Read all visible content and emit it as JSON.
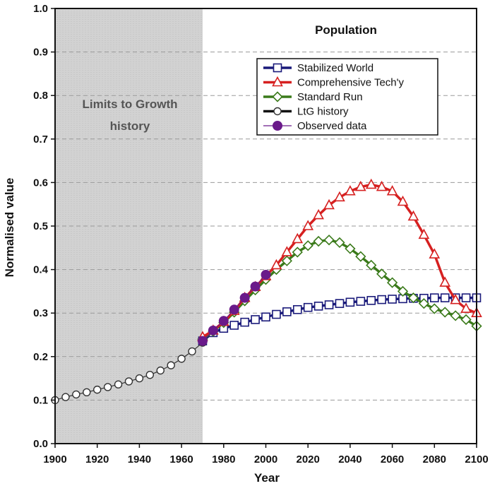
{
  "chart_data": {
    "type": "line",
    "title": "Population",
    "xlabel": "Year",
    "ylabel": "Normalised value",
    "xlim": [
      1900,
      2100
    ],
    "ylim": [
      0,
      1.0
    ],
    "xticks": [
      1900,
      1920,
      1940,
      1960,
      1980,
      2000,
      2020,
      2040,
      2060,
      2080,
      2100
    ],
    "yticks": [
      0.0,
      0.1,
      0.2,
      0.3,
      0.4,
      0.5,
      0.6,
      0.7,
      0.8,
      0.9,
      1.0
    ],
    "ytick_labels": [
      "0.0",
      "0.1",
      "0.2",
      "0.3",
      "0.4",
      "0.5",
      "0.6",
      "0.7",
      "0.8",
      "0.9",
      "1.0"
    ],
    "grid": "horizontal dashed",
    "legend_position": "top-right",
    "shaded_region": {
      "x_start": 1900,
      "x_end": 1970,
      "label_line1": "Limits to Growth",
      "label_line2": "history"
    },
    "series": [
      {
        "name": "Stabilized World",
        "color": "#1a1a7a",
        "marker": "square",
        "x": [
          1970,
          1975,
          1980,
          1985,
          1990,
          1995,
          2000,
          2005,
          2010,
          2015,
          2020,
          2025,
          2030,
          2035,
          2040,
          2045,
          2050,
          2055,
          2060,
          2065,
          2070,
          2075,
          2080,
          2085,
          2090,
          2095,
          2100
        ],
        "values": [
          0.236,
          0.255,
          0.265,
          0.272,
          0.279,
          0.285,
          0.291,
          0.297,
          0.303,
          0.308,
          0.313,
          0.316,
          0.319,
          0.322,
          0.325,
          0.327,
          0.329,
          0.331,
          0.332,
          0.333,
          0.334,
          0.334,
          0.335,
          0.335,
          0.335,
          0.335,
          0.335
        ]
      },
      {
        "name": "Comprehensive Tech'y",
        "color": "#d62020",
        "marker": "triangle",
        "x": [
          1970,
          1975,
          1980,
          1985,
          1990,
          1995,
          2000,
          2005,
          2010,
          2015,
          2020,
          2025,
          2030,
          2035,
          2040,
          2045,
          2050,
          2055,
          2060,
          2065,
          2070,
          2075,
          2080,
          2085,
          2090,
          2095,
          2100
        ],
        "values": [
          0.245,
          0.26,
          0.28,
          0.305,
          0.335,
          0.36,
          0.385,
          0.41,
          0.44,
          0.47,
          0.5,
          0.525,
          0.548,
          0.566,
          0.58,
          0.59,
          0.595,
          0.59,
          0.58,
          0.556,
          0.522,
          0.48,
          0.435,
          0.37,
          0.33,
          0.31,
          0.3
        ]
      },
      {
        "name": "Standard Run",
        "color": "#3a7a1a",
        "marker": "diamond",
        "x": [
          1970,
          1975,
          1980,
          1985,
          1990,
          1995,
          2000,
          2005,
          2010,
          2015,
          2020,
          2025,
          2030,
          2035,
          2040,
          2045,
          2050,
          2055,
          2060,
          2065,
          2070,
          2075,
          2080,
          2085,
          2090,
          2095,
          2100
        ],
        "values": [
          0.24,
          0.258,
          0.278,
          0.302,
          0.328,
          0.353,
          0.377,
          0.4,
          0.42,
          0.44,
          0.455,
          0.465,
          0.468,
          0.462,
          0.448,
          0.43,
          0.41,
          0.39,
          0.37,
          0.35,
          0.335,
          0.322,
          0.31,
          0.302,
          0.294,
          0.285,
          0.27
        ]
      },
      {
        "name": "LtG history",
        "color": "#111111",
        "marker": "circle-open",
        "x": [
          1900,
          1905,
          1910,
          1915,
          1920,
          1925,
          1930,
          1935,
          1940,
          1945,
          1950,
          1955,
          1960,
          1965,
          1970
        ],
        "values": [
          0.1,
          0.107,
          0.113,
          0.118,
          0.124,
          0.13,
          0.136,
          0.143,
          0.15,
          0.158,
          0.168,
          0.18,
          0.195,
          0.212,
          0.232
        ]
      },
      {
        "name": "Observed data",
        "color": "#6a1a8a",
        "marker": "circle-filled",
        "x": [
          1970,
          1975,
          1980,
          1985,
          1990,
          1995,
          2000
        ],
        "values": [
          0.236,
          0.26,
          0.282,
          0.308,
          0.335,
          0.361,
          0.388
        ]
      }
    ]
  }
}
